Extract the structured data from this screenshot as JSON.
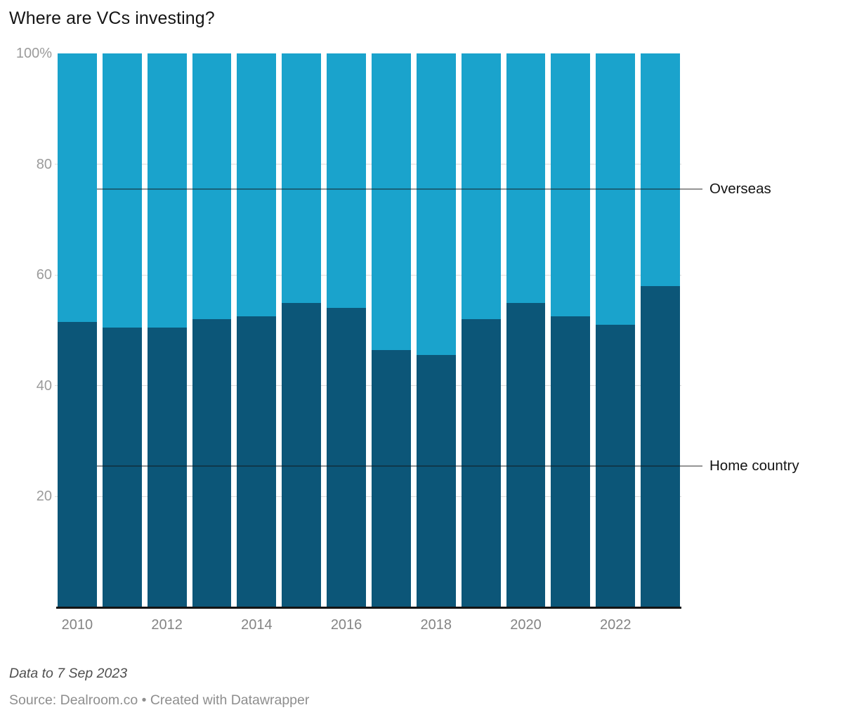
{
  "title": "Where are VCs investing?",
  "chart_data": {
    "type": "bar",
    "variant": "stacked-100-percent",
    "title": "Where are VCs investing?",
    "categories": [
      "2010",
      "2011",
      "2012",
      "2013",
      "2014",
      "2015",
      "2016",
      "2017",
      "2018",
      "2019",
      "2020",
      "2021",
      "2022",
      "2023"
    ],
    "series": [
      {
        "name": "Home country",
        "color": "#0C5678",
        "values": [
          51.5,
          50.5,
          50.5,
          52,
          52.5,
          55,
          54,
          46.5,
          45.5,
          52,
          55,
          52.5,
          51,
          58
        ]
      },
      {
        "name": "Overseas",
        "color": "#1AA3CC",
        "values": [
          48.5,
          49.5,
          49.5,
          48,
          47.5,
          45,
          46,
          53.5,
          54.5,
          48,
          45,
          47.5,
          49,
          42
        ]
      }
    ],
    "ylabel": "",
    "xlabel": "",
    "ylim": [
      0,
      100
    ],
    "grid": "horizontal",
    "legend_position": "right-annotations",
    "y_ticks": [
      {
        "label": "100%",
        "value": 100
      },
      {
        "label": "80",
        "value": 80
      },
      {
        "label": "60",
        "value": 60
      },
      {
        "label": "40",
        "value": 40
      },
      {
        "label": "20",
        "value": 20
      }
    ],
    "x_ticks": [
      {
        "label": "2010",
        "index": 0
      },
      {
        "label": "2012",
        "index": 2
      },
      {
        "label": "2014",
        "index": 4
      },
      {
        "label": "2016",
        "index": 6
      },
      {
        "label": "2018",
        "index": 8
      },
      {
        "label": "2020",
        "index": 10
      },
      {
        "label": "2022",
        "index": 12
      }
    ],
    "annotations": [
      {
        "text": "Overseas",
        "series": "Overseas",
        "at_percent": 75.5
      },
      {
        "text": "Home country",
        "series": "Home country",
        "at_percent": 25.5
      }
    ]
  },
  "footer": {
    "note": "Data to 7 Sep 2023",
    "source": "Source: Dealroom.co • Created with Datawrapper"
  }
}
